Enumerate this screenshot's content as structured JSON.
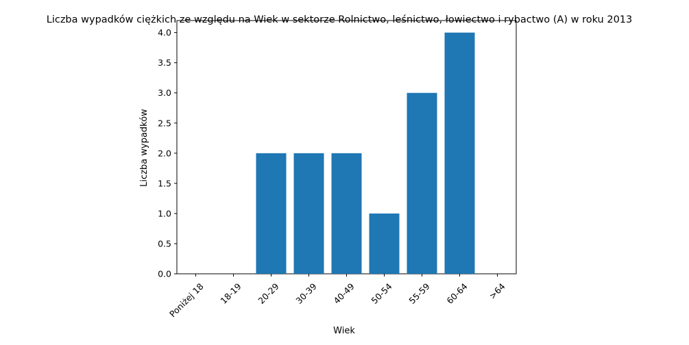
{
  "chart_data": {
    "type": "bar",
    "title": "Liczba wypadków ciężkich ze względu na Wiek w sektorze Rolnictwo, leśnictwo, łowiectwo i rybactwo (A) w roku 2013",
    "xlabel": "Wiek",
    "ylabel": "Liczba wypadków",
    "categories": [
      "Poniżej 18",
      "18-19",
      "20-29",
      "30-39",
      "40-49",
      "50-54",
      "55-59",
      "60-64",
      ">64"
    ],
    "values": [
      0,
      0,
      2,
      2,
      2,
      1,
      3,
      4,
      0
    ],
    "ylim": [
      0,
      4.2
    ],
    "yticks": [
      "0.0",
      "0.5",
      "1.0",
      "1.5",
      "2.0",
      "2.5",
      "3.0",
      "3.5",
      "4.0"
    ],
    "bar_color": "#1f77b4",
    "grid": false,
    "legend": false
  }
}
